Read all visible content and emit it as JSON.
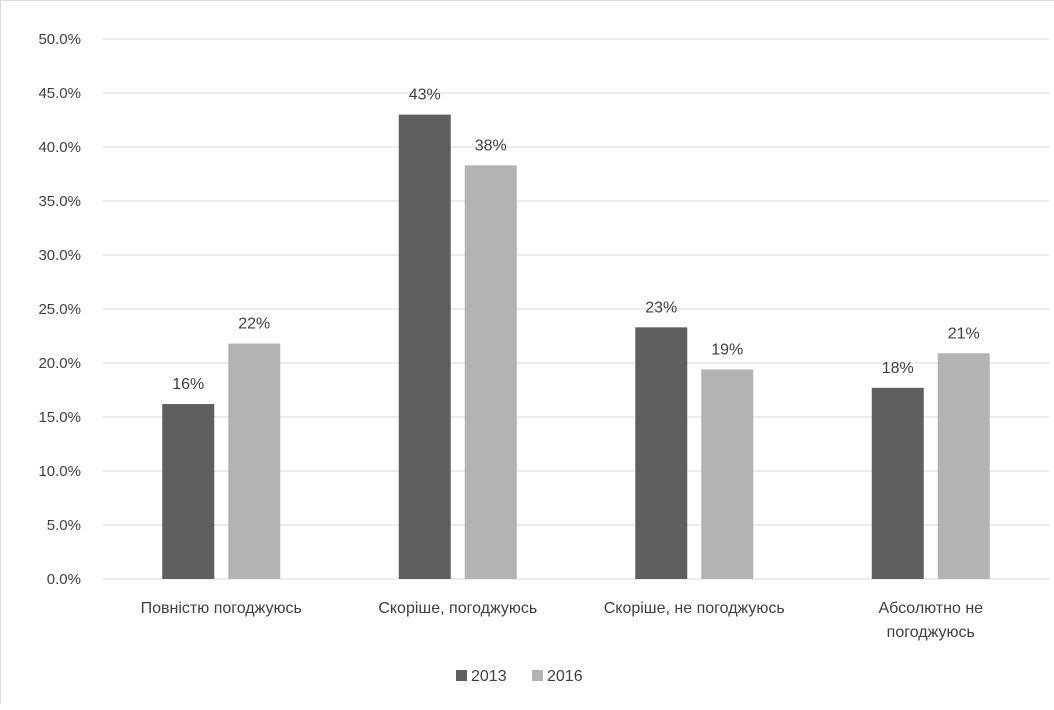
{
  "chart_data": {
    "type": "bar",
    "categories": [
      [
        "Повністю погоджуюсь"
      ],
      [
        "Скоріше, погоджуюсь"
      ],
      [
        "Скоріше, не погоджуюсь"
      ],
      [
        "Абсолютно не",
        "погоджуюсь"
      ]
    ],
    "series": [
      {
        "name": "2013",
        "color": "#5f5f5f",
        "values": [
          16.2,
          43.0,
          23.3,
          17.7
        ],
        "labels": [
          "16%",
          "43%",
          "23%",
          "18%"
        ]
      },
      {
        "name": "2016",
        "color": "#b3b3b3",
        "values": [
          21.8,
          38.3,
          19.4,
          20.9
        ],
        "labels": [
          "22%",
          "38%",
          "19%",
          "21%"
        ]
      }
    ],
    "ylim": [
      0,
      50
    ],
    "yticks": [
      "0.0%",
      "5.0%",
      "10.0%",
      "15.0%",
      "20.0%",
      "25.0%",
      "30.0%",
      "35.0%",
      "40.0%",
      "45.0%",
      "50.0%"
    ],
    "grid": true,
    "legend_position": "bottom"
  }
}
